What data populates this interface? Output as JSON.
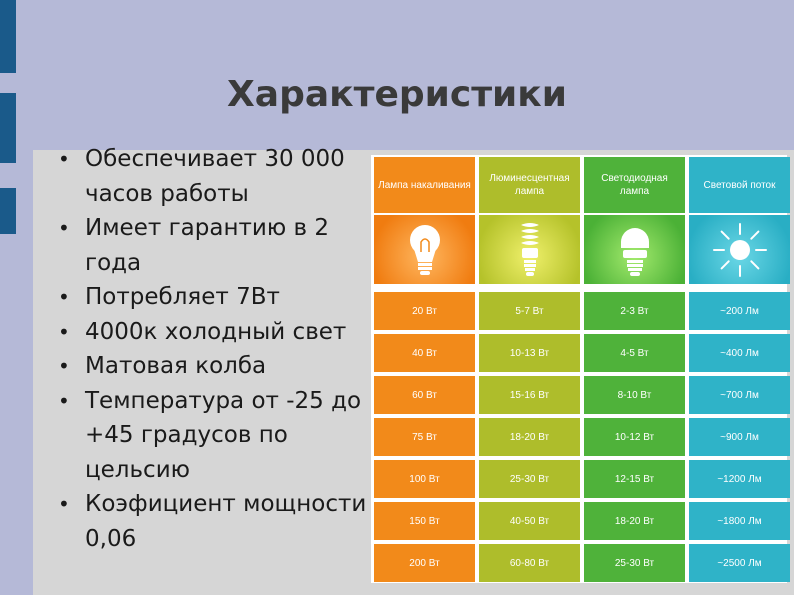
{
  "slide": {
    "title": "Характеристики",
    "bullets": [
      {
        "text": "Обеспечивает 30 000 часов работы"
      },
      {
        "text": "Имеет гарантию в 2 года"
      },
      {
        "text": "Потребляет 7Вт"
      },
      {
        "text": "4000к холодный свет"
      },
      {
        "text": "Матовая колба"
      },
      {
        "text": "Температура от -25 до +45 градусов по цельсию"
      },
      {
        "text": "Коэфициент мощности 0,06"
      }
    ]
  },
  "table": {
    "columns": [
      {
        "header": "Лампа накаливания",
        "icon": "incandescent-bulb-icon",
        "color": "#f28a1a",
        "values": [
          "20 Вт",
          "40 Вт",
          "60 Вт",
          "75 Вт",
          "100 Вт",
          "150 Вт",
          "200 Вт"
        ]
      },
      {
        "header": "Люминесцентная лампа",
        "icon": "fluorescent-lamp-icon",
        "color": "#aebd2b",
        "values": [
          "5-7 Вт",
          "10-13 Вт",
          "15-16 Вт",
          "18-20 Вт",
          "25-30 Вт",
          "40-50 Вт",
          "60-80 Вт"
        ]
      },
      {
        "header": "Светодиодная лампа",
        "icon": "led-bulb-icon",
        "color": "#4fb23a",
        "values": [
          "2-3 Вт",
          "4-5 Вт",
          "8-10 Вт",
          "10-12 Вт",
          "12-15 Вт",
          "18-20 Вт",
          "25-30 Вт"
        ]
      },
      {
        "header": "Световой поток",
        "icon": "sun-icon",
        "color": "#2fb3c8",
        "values": [
          "~200 Лм",
          "~400 Лм",
          "~700 Лм",
          "~900 Лм",
          "~1200 Лм",
          "~1800 Лм",
          "~2500 Лм"
        ]
      }
    ]
  }
}
